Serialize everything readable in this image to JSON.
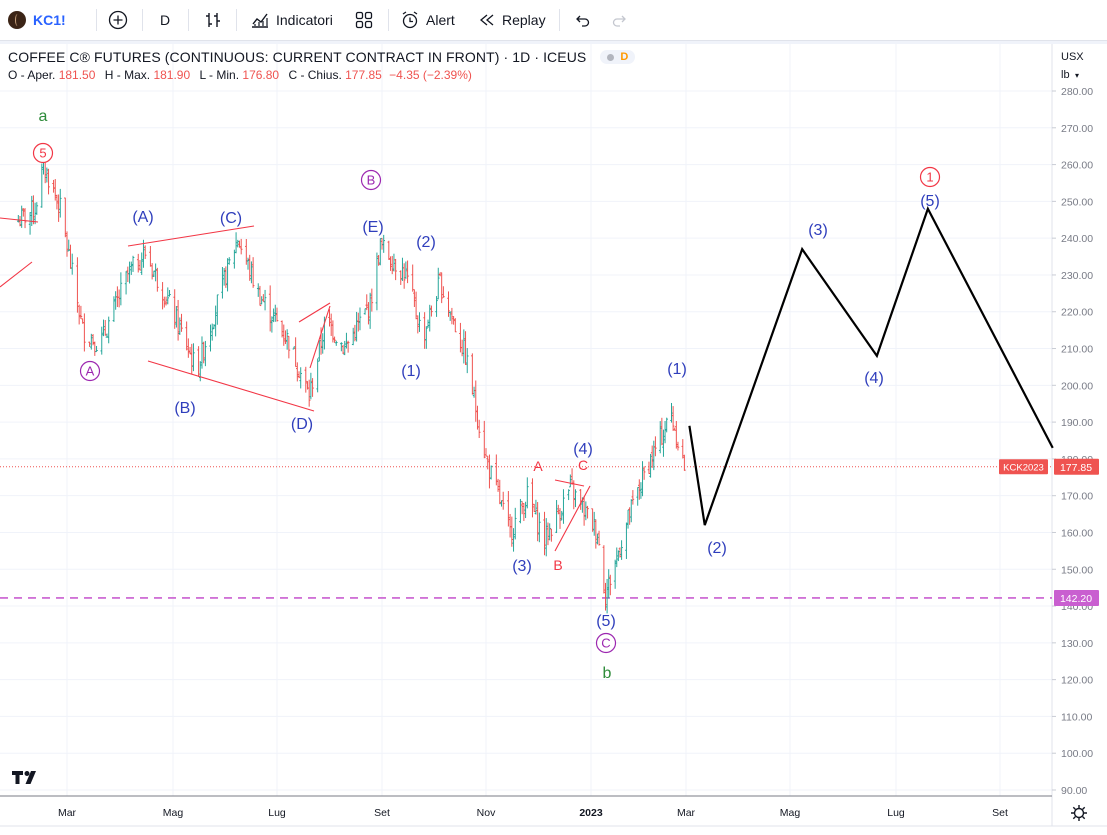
{
  "toolbar": {
    "symbol": "KC1!",
    "interval": "D",
    "indicators_label": "Indicatori",
    "alert_label": "Alert",
    "replay_label": "Replay"
  },
  "legend": {
    "title": "COFFEE C® FUTURES (CONTINUOUS: CURRENT CONTRACT IN FRONT) · 1D · ICEUS",
    "badge": "D",
    "o_label": "O - Aper.",
    "o_value": "181.50",
    "h_label": "H - Max.",
    "h_value": "181.90",
    "l_label": "L - Min.",
    "l_value": "176.80",
    "c_label": "C - Chius.",
    "c_value": "177.85",
    "change": "−4.35 (−2.39%)"
  },
  "price_axis": {
    "currency": "USX",
    "unit": "lb",
    "ticks": [
      "280.00",
      "270.00",
      "260.00",
      "250.00",
      "240.00",
      "230.00",
      "220.00",
      "210.00",
      "200.00",
      "190.00",
      "180.00",
      "170.00",
      "160.00",
      "150.00",
      "140.00",
      "130.00",
      "120.00",
      "110.00",
      "100.00",
      "90.00"
    ],
    "last_price": "177.85",
    "last_symbol": "KCK2023",
    "support_price": "142.20"
  },
  "time_axis": [
    "Mar",
    "Mag",
    "Lug",
    "Set",
    "Nov",
    "2023",
    "Mar",
    "Mag",
    "Lug",
    "Set"
  ],
  "colors": {
    "up": "#26a69a",
    "down": "#ef5350",
    "wave_blue": "#2962ff",
    "wave_purple": "#9c27b0",
    "wave_red": "#f23645",
    "wave_green": "#388e3c",
    "support": "#c95fd0",
    "projection": "#000000"
  },
  "chart_data": {
    "type": "candlestick",
    "symbol": "KC1!",
    "interval": "1D",
    "y_range": [
      90,
      280
    ],
    "last_price": 177.85,
    "support_level": 142.2,
    "price_path_daily_approx": [
      {
        "date": "2022-02-10",
        "close": 248
      },
      {
        "date": "2022-02-15",
        "close": 260
      },
      {
        "date": "2022-02-25",
        "close": 248
      },
      {
        "date": "2022-03-10",
        "close": 215
      },
      {
        "date": "2022-03-20",
        "close": 211
      },
      {
        "date": "2022-04-05",
        "close": 230
      },
      {
        "date": "2022-04-15",
        "close": 236
      },
      {
        "date": "2022-05-01",
        "close": 220
      },
      {
        "date": "2022-05-15",
        "close": 204
      },
      {
        "date": "2022-06-01",
        "close": 230
      },
      {
        "date": "2022-06-08",
        "close": 240
      },
      {
        "date": "2022-06-20",
        "close": 225
      },
      {
        "date": "2022-07-08",
        "close": 212
      },
      {
        "date": "2022-07-20",
        "close": 197
      },
      {
        "date": "2022-07-30",
        "close": 218
      },
      {
        "date": "2022-08-10",
        "close": 210
      },
      {
        "date": "2022-08-25",
        "close": 222
      },
      {
        "date": "2022-08-31",
        "close": 238
      },
      {
        "date": "2022-09-15",
        "close": 230
      },
      {
        "date": "2022-09-25",
        "close": 213
      },
      {
        "date": "2022-10-05",
        "close": 228
      },
      {
        "date": "2022-10-20",
        "close": 208
      },
      {
        "date": "2022-11-01",
        "close": 180
      },
      {
        "date": "2022-11-15",
        "close": 160
      },
      {
        "date": "2022-11-25",
        "close": 170
      },
      {
        "date": "2022-12-05",
        "close": 158
      },
      {
        "date": "2022-12-20",
        "close": 172
      },
      {
        "date": "2023-01-05",
        "close": 160
      },
      {
        "date": "2023-01-10",
        "close": 143
      },
      {
        "date": "2023-01-25",
        "close": 165
      },
      {
        "date": "2023-02-05",
        "close": 178
      },
      {
        "date": "2023-02-20",
        "close": 192
      },
      {
        "date": "2023-02-28",
        "close": 177.85
      }
    ],
    "projection": [
      {
        "date": "2023-03-03",
        "price": 189
      },
      {
        "date": "2023-03-12",
        "price": 162
      },
      {
        "date": "2023-05-08",
        "price": 237
      },
      {
        "date": "2023-06-20",
        "price": 208
      },
      {
        "date": "2023-07-20",
        "price": 248
      },
      {
        "date": "2023-09-30",
        "price": 183
      }
    ],
    "wave_labels": [
      {
        "text": "a",
        "color": "green"
      },
      {
        "text": "5",
        "color": "red",
        "circled": true
      },
      {
        "text": "A",
        "color": "purple",
        "circled": true
      },
      {
        "text": "(A)",
        "color": "blue"
      },
      {
        "text": "(B)",
        "color": "blue"
      },
      {
        "text": "(C)",
        "color": "blue"
      },
      {
        "text": "(D)",
        "color": "blue"
      },
      {
        "text": "B",
        "color": "purple",
        "circled": true
      },
      {
        "text": "(E)",
        "color": "blue"
      },
      {
        "text": "(1)",
        "color": "blue"
      },
      {
        "text": "(2)",
        "color": "blue"
      },
      {
        "text": "(3)",
        "color": "blue"
      },
      {
        "text": "A",
        "color": "red"
      },
      {
        "text": "B",
        "color": "red"
      },
      {
        "text": "C",
        "color": "red"
      },
      {
        "text": "(4)",
        "color": "blue"
      },
      {
        "text": "(5)",
        "color": "blue"
      },
      {
        "text": "C",
        "color": "purple",
        "circled": true
      },
      {
        "text": "b",
        "color": "green"
      },
      {
        "text": "(1)",
        "color": "blue"
      },
      {
        "text": "(2)",
        "color": "blue"
      },
      {
        "text": "(3)",
        "color": "blue"
      },
      {
        "text": "(4)",
        "color": "blue"
      },
      {
        "text": "(5)",
        "color": "blue"
      },
      {
        "text": "1",
        "color": "red",
        "circled": true
      }
    ]
  }
}
